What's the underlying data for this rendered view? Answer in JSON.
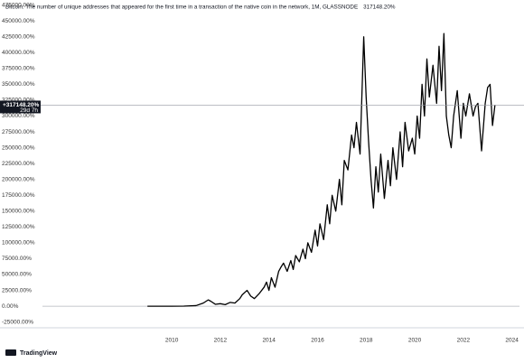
{
  "chart_data": {
    "type": "line",
    "title": "Bitcoin: The number of unique addresses that appeared for the first time in a transaction of the native coin in the network, 1M, GLASSNODE",
    "title_value": "317148.20%",
    "last_value": 317148.2,
    "last_label": "+317148.20%",
    "countdown": "29d 7h",
    "logo": "TradingView",
    "color": "#000000",
    "zero_line": true,
    "xlim": [
      2004.68,
      2024.31
    ],
    "xticks": [
      2010,
      2012,
      2014,
      2016,
      2018,
      2020,
      2022,
      2024
    ],
    "ylim": [
      -34000,
      483000
    ],
    "yticks": [
      {
        "value": -25000,
        "label": "-25000.00%"
      },
      {
        "value": 0,
        "label": "0.00%"
      },
      {
        "value": 25000,
        "label": "25000.00%"
      },
      {
        "value": 50000,
        "label": "50000.00%"
      },
      {
        "value": 75000,
        "label": "75000.00%"
      },
      {
        "value": 100000,
        "label": "100000.00%"
      },
      {
        "value": 125000,
        "label": "125000.00%"
      },
      {
        "value": 150000,
        "label": "150000.00%"
      },
      {
        "value": 175000,
        "label": "175000.00%"
      },
      {
        "value": 200000,
        "label": "200000.00%"
      },
      {
        "value": 225000,
        "label": "225000.00%"
      },
      {
        "value": 250000,
        "label": "250000.00%"
      },
      {
        "value": 275000,
        "label": "275000.00%"
      },
      {
        "value": 300000,
        "label": "300000.00%"
      },
      {
        "value": 325000,
        "label": "325000.00%"
      },
      {
        "value": 350000,
        "label": "350000.00%"
      },
      {
        "value": 375000,
        "label": "375000.00%"
      },
      {
        "value": 400000,
        "label": "400000.00%"
      },
      {
        "value": 425000,
        "label": "425000.00%"
      },
      {
        "value": 450000,
        "label": "450000.00%"
      },
      {
        "value": 475000,
        "label": "475000.00%"
      }
    ],
    "x": [
      2009.0,
      2010.0,
      2010.5,
      2011.0,
      2011.3,
      2011.5,
      2011.6,
      2011.8,
      2012.0,
      2012.2,
      2012.4,
      2012.6,
      2012.8,
      2012.9,
      2013.1,
      2013.25,
      2013.4,
      2013.6,
      2013.8,
      2013.9,
      2014.0,
      2014.1,
      2014.25,
      2014.4,
      2014.5,
      2014.6,
      2014.75,
      2014.9,
      2015.0,
      2015.1,
      2015.25,
      2015.4,
      2015.5,
      2015.6,
      2015.75,
      2015.9,
      2016.0,
      2016.1,
      2016.25,
      2016.4,
      2016.5,
      2016.6,
      2016.75,
      2016.9,
      2017.0,
      2017.1,
      2017.25,
      2017.4,
      2017.5,
      2017.6,
      2017.75,
      2017.9,
      2018.0,
      2018.1,
      2018.2,
      2018.3,
      2018.4,
      2018.5,
      2018.6,
      2018.75,
      2018.9,
      2019.0,
      2019.1,
      2019.25,
      2019.4,
      2019.5,
      2019.6,
      2019.75,
      2019.9,
      2020.0,
      2020.1,
      2020.2,
      2020.3,
      2020.4,
      2020.5,
      2020.6,
      2020.75,
      2020.9,
      2021.0,
      2021.1,
      2021.2,
      2021.3,
      2021.4,
      2021.5,
      2021.6,
      2021.75,
      2021.9,
      2022.0,
      2022.1,
      2022.25,
      2022.4,
      2022.5,
      2022.6,
      2022.75,
      2022.9,
      2023.0,
      2023.1,
      2023.2,
      2023.3
    ],
    "values": [
      0,
      0,
      200,
      1000,
      5000,
      10000,
      8000,
      3000,
      4000,
      2500,
      6000,
      5000,
      12000,
      18000,
      25000,
      16000,
      12000,
      20000,
      30000,
      38000,
      25000,
      45000,
      30000,
      55000,
      62000,
      68000,
      55000,
      72000,
      58000,
      80000,
      70000,
      90000,
      75000,
      100000,
      85000,
      120000,
      95000,
      130000,
      105000,
      160000,
      130000,
      175000,
      150000,
      200000,
      160000,
      230000,
      215000,
      270000,
      250000,
      290000,
      240000,
      425000,
      330000,
      260000,
      200000,
      155000,
      220000,
      180000,
      240000,
      170000,
      230000,
      190000,
      250000,
      200000,
      275000,
      220000,
      290000,
      245000,
      265000,
      240000,
      300000,
      265000,
      350000,
      300000,
      390000,
      330000,
      380000,
      320000,
      410000,
      340000,
      430000,
      300000,
      270000,
      250000,
      300000,
      340000,
      265000,
      320000,
      300000,
      335000,
      300000,
      315000,
      320000,
      245000,
      320000,
      345000,
      350000,
      285000,
      317148
    ]
  }
}
